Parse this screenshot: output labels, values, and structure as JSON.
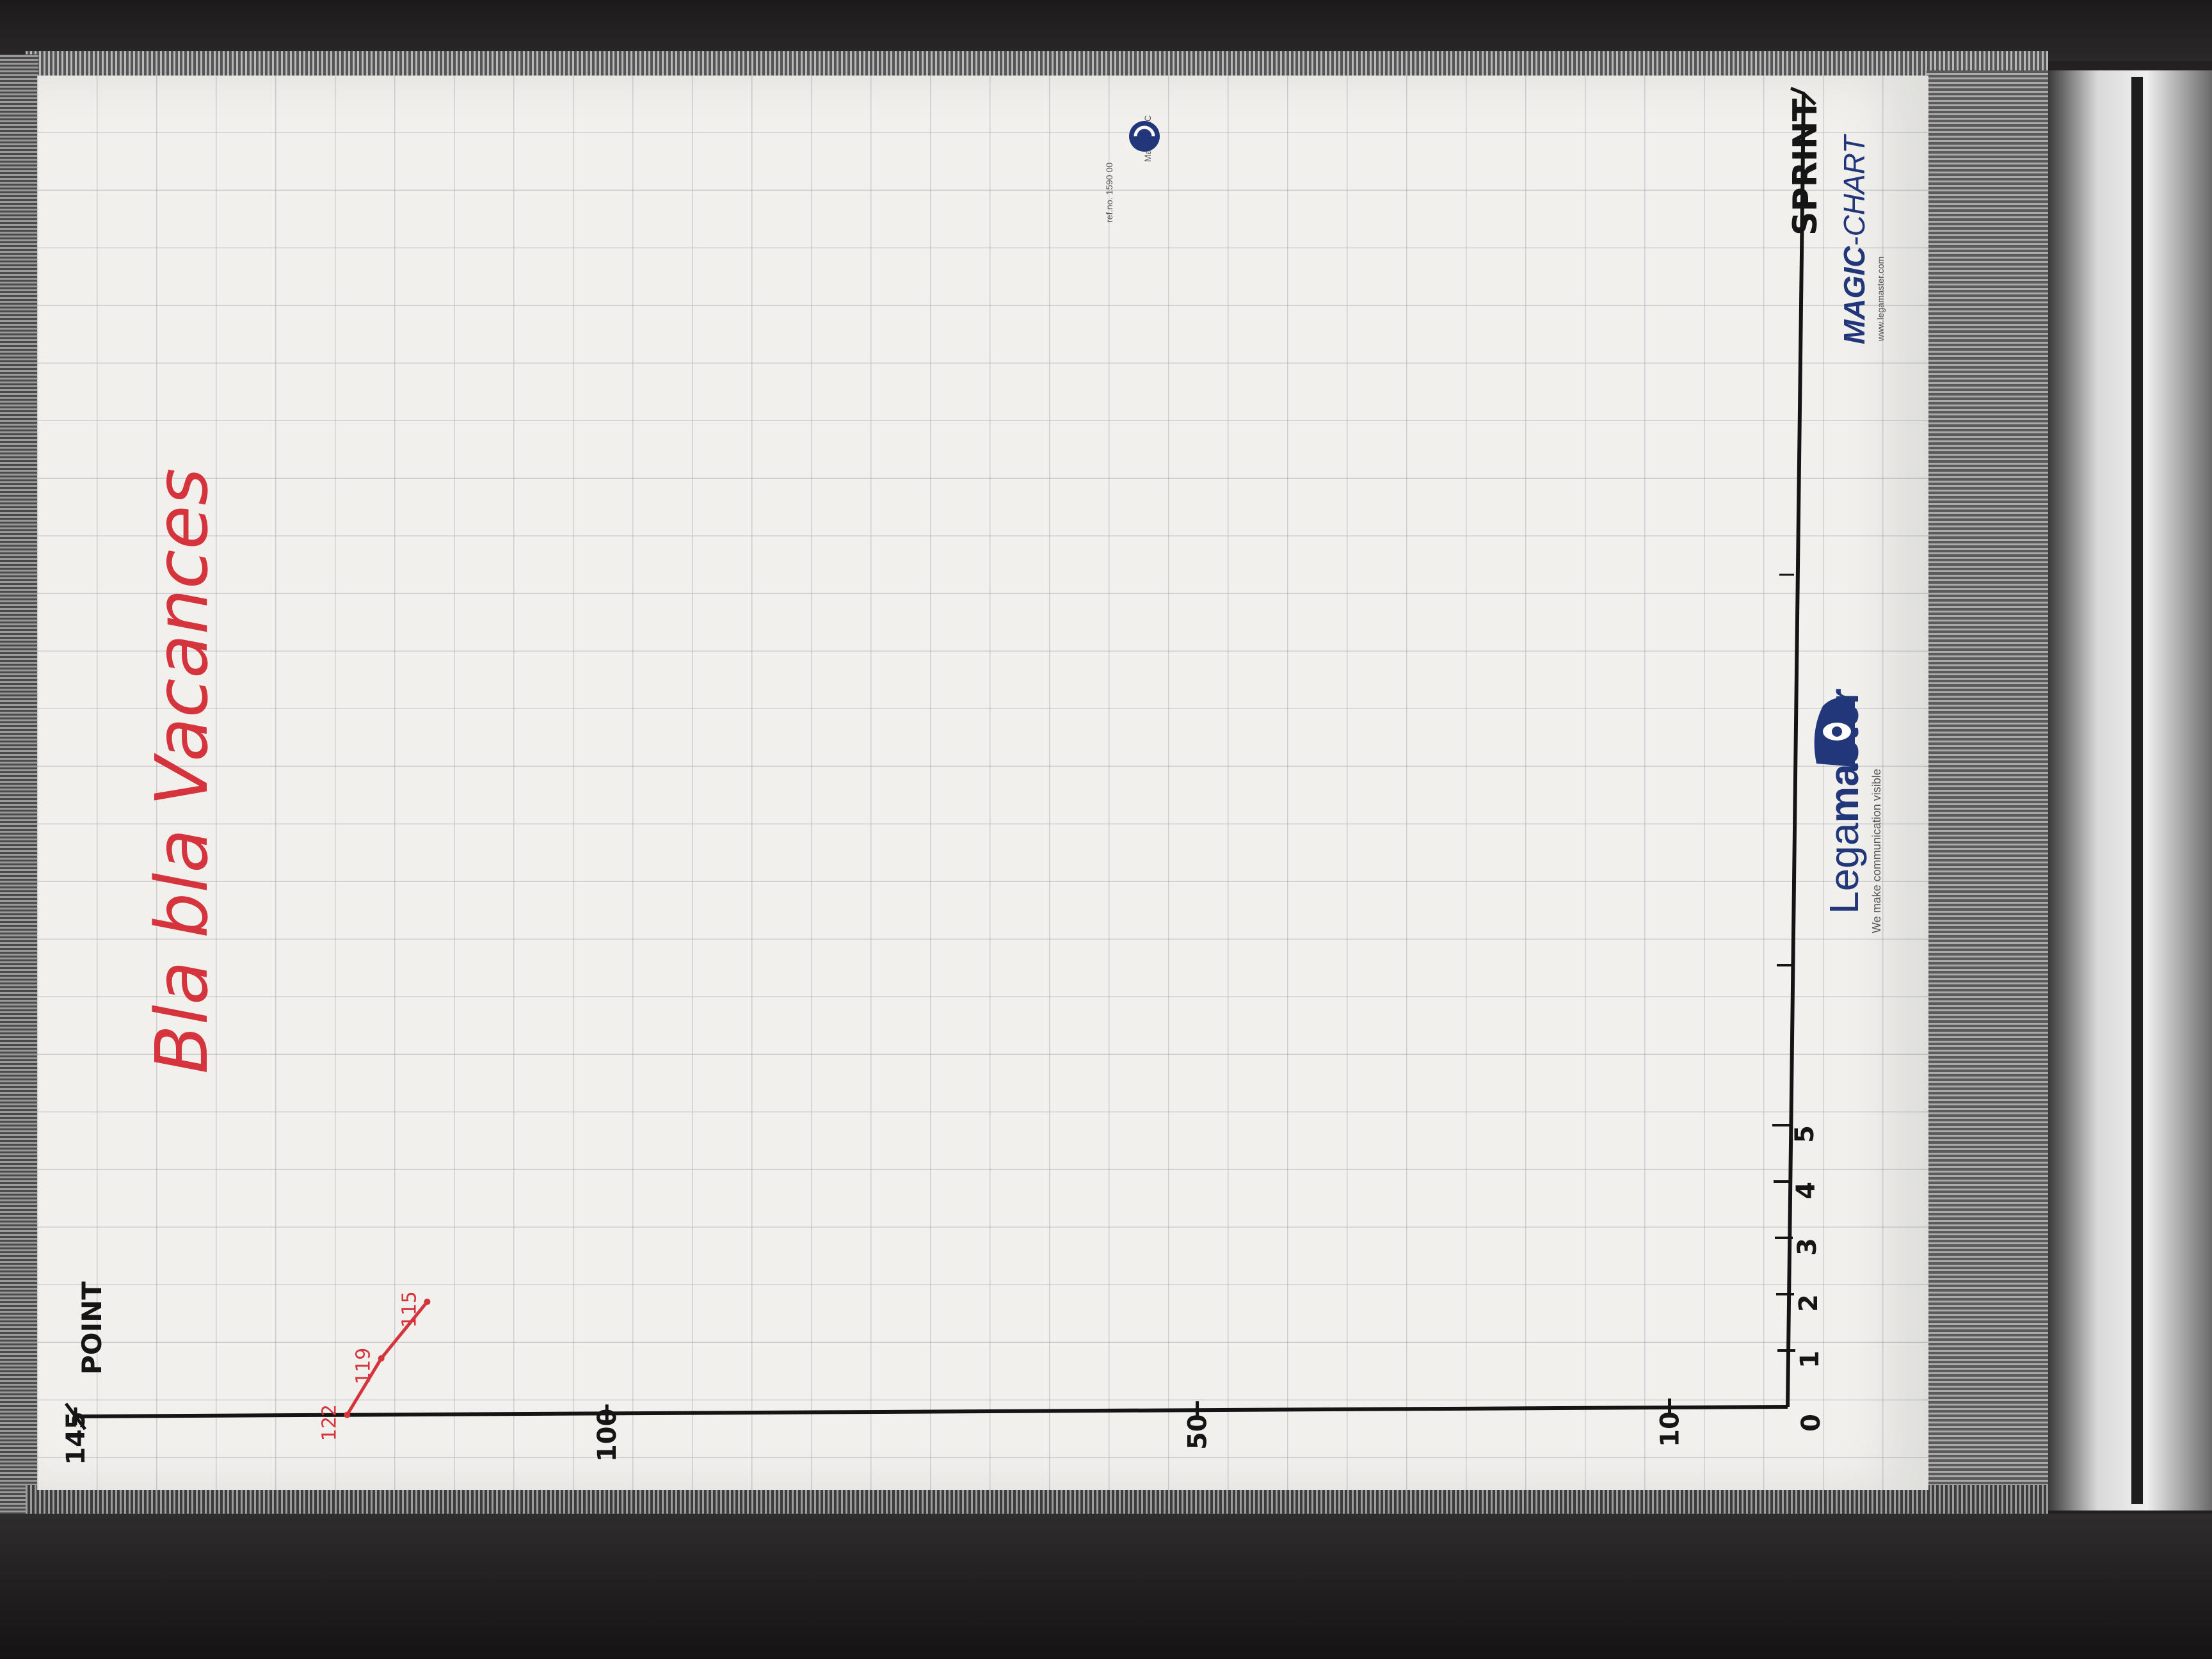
{
  "sheet": {
    "title": "Bla bla Vacances",
    "brand_name_light": "Lega",
    "brand_name_bold": "master",
    "brand_tagline": "We make communication visible",
    "product_bold": "MAGIC",
    "product_light": "-CHART",
    "product_url": "www.legamaster.com",
    "ref_no": "ref.no. 1590 00",
    "made_in": "Made in EC"
  },
  "chart_data": {
    "type": "line",
    "xlabel": "SPRINT",
    "ylabel": "POINT",
    "x_ticks": [
      "0",
      "1",
      "2",
      "3",
      "4",
      "5"
    ],
    "y_ticks": [
      "10",
      "50",
      "100",
      "145"
    ],
    "ylim": [
      0,
      145
    ],
    "series": [
      {
        "color": "#d5343c",
        "x": [
          0,
          1,
          2
        ],
        "y": [
          122,
          119,
          115
        ],
        "labels": [
          "122",
          "119",
          "115"
        ]
      }
    ]
  }
}
